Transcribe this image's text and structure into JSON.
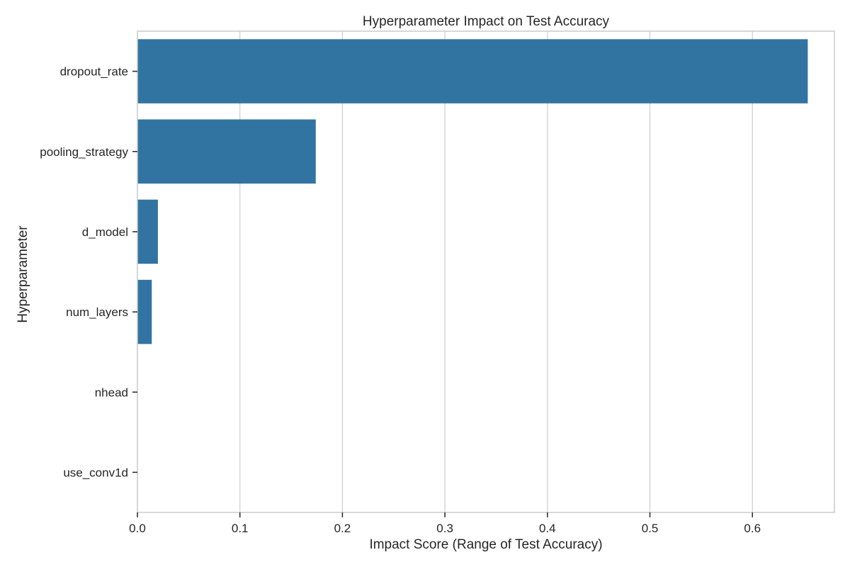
{
  "chart_data": {
    "type": "bar",
    "orientation": "horizontal",
    "title": "Hyperparameter Impact on Test Accuracy",
    "xlabel": "Impact Score (Range of Test Accuracy)",
    "ylabel": "Hyperparameter",
    "categories": [
      "dropout_rate",
      "pooling_strategy",
      "d_model",
      "num_layers",
      "nhead",
      "use_conv1d"
    ],
    "values": [
      0.654,
      0.174,
      0.02,
      0.014,
      0.0,
      0.0
    ],
    "xlim": [
      0,
      0.68
    ],
    "xticks": [
      0.0,
      0.1,
      0.2,
      0.3,
      0.4,
      0.5,
      0.6
    ],
    "xtick_labels": [
      "0.0",
      "0.1",
      "0.2",
      "0.3",
      "0.4",
      "0.5",
      "0.6"
    ],
    "grid": "vertical",
    "bar_color": "#3274a1",
    "grid_color": "#cccccc"
  }
}
